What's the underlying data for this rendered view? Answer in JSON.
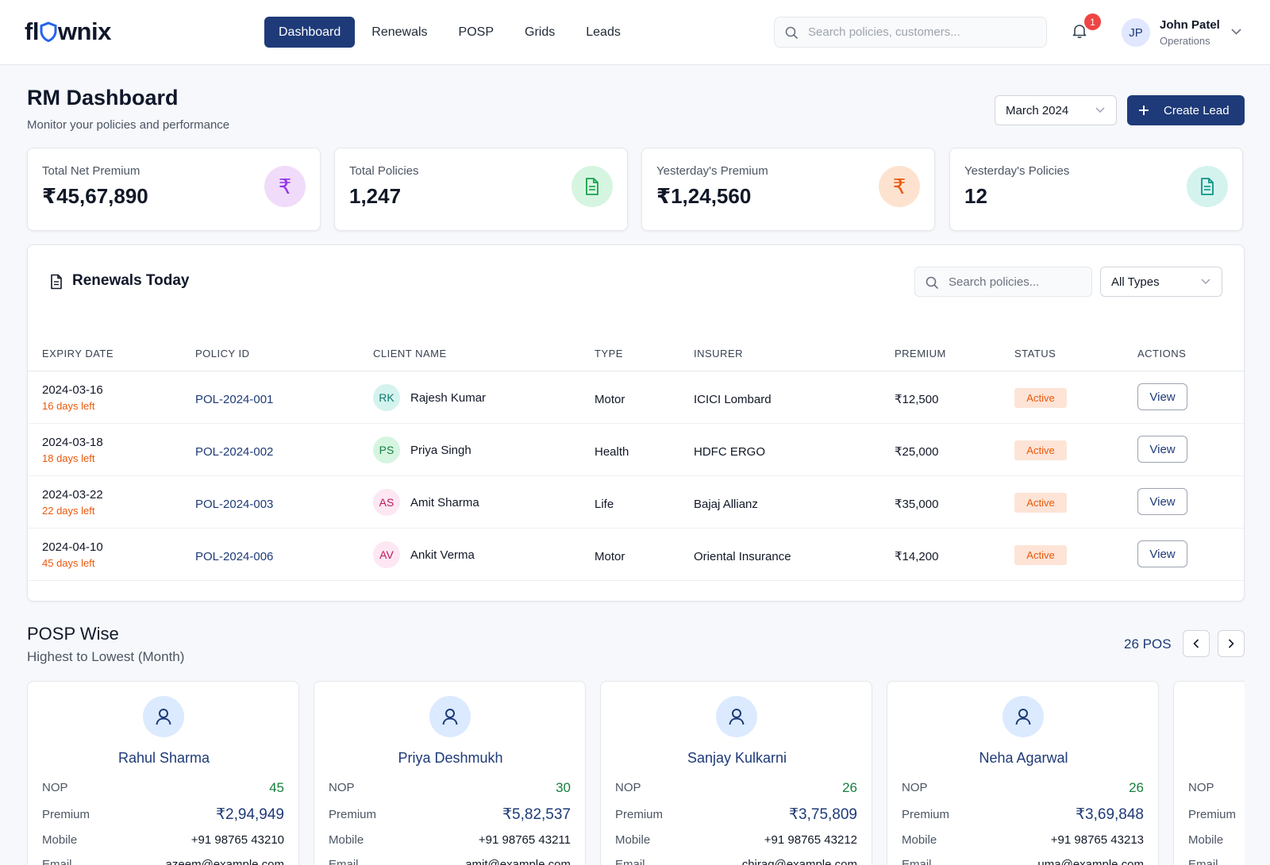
{
  "brand": {
    "logo_prefix": "fl",
    "logo_suffix": "wnix"
  },
  "nav": {
    "tabs": [
      {
        "label": "Dashboard"
      },
      {
        "label": "Renewals"
      },
      {
        "label": "POSP"
      },
      {
        "label": "Grids"
      },
      {
        "label": "Leads"
      }
    ]
  },
  "top_search": {
    "placeholder": "Search policies, customers..."
  },
  "notifications": {
    "count": "1"
  },
  "user": {
    "initials": "JP",
    "name": "John Patel",
    "role": "Operations"
  },
  "header": {
    "title": "RM Dashboard",
    "subtitle": "Monitor your policies and performance",
    "month": "March 2024",
    "create_label": "Create Lead"
  },
  "stats": [
    {
      "label": "Total Net Premium",
      "value": "₹45,67,890",
      "icon": "rupee-icon",
      "bg": "#f0dcfa",
      "fg": "#9333ea"
    },
    {
      "label": "Total Policies",
      "value": "1,247",
      "icon": "document-icon",
      "bg": "#d6f5e1",
      "fg": "#16a34a"
    },
    {
      "label": "Yesterday's Premium",
      "value": "₹1,24,560",
      "icon": "rupee-icon",
      "bg": "#fde3cf",
      "fg": "#ea580c"
    },
    {
      "label": "Yesterday's Policies",
      "value": "12",
      "icon": "document-icon",
      "bg": "#d4f3ee",
      "fg": "#0d9488"
    }
  ],
  "renewals": {
    "title": "Renewals Today",
    "search_placeholder": "Search policies...",
    "type_filter": "All Types",
    "columns": [
      "EXPIRY DATE",
      "POLICY ID",
      "CLIENT NAME",
      "TYPE",
      "INSURER",
      "PREMIUM",
      "STATUS",
      "ACTIONS"
    ],
    "rows": [
      {
        "expiry": "2024-03-16",
        "days_left": "16 days left",
        "policy_id": "POL-2024-001",
        "initials": "RK",
        "client": "Rajesh Kumar",
        "type": "Motor",
        "insurer": "ICICI Lombard",
        "premium": "₹12,500",
        "status": "Active",
        "action": "View",
        "avatar_bg": "#d4f3ee",
        "avatar_fg": "#0f766e"
      },
      {
        "expiry": "2024-03-18",
        "days_left": "18 days left",
        "policy_id": "POL-2024-002",
        "initials": "PS",
        "client": "Priya Singh",
        "type": "Health",
        "insurer": "HDFC ERGO",
        "premium": "₹25,000",
        "status": "Active",
        "action": "View",
        "avatar_bg": "#d6f5e1",
        "avatar_fg": "#15803d"
      },
      {
        "expiry": "2024-03-22",
        "days_left": "22 days left",
        "policy_id": "POL-2024-003",
        "initials": "AS",
        "client": "Amit Sharma",
        "type": "Life",
        "insurer": "Bajaj Allianz",
        "premium": "₹35,000",
        "status": "Active",
        "action": "View",
        "avatar_bg": "#fce7f3",
        "avatar_fg": "#be185d"
      },
      {
        "expiry": "2024-04-10",
        "days_left": "45 days left",
        "policy_id": "POL-2024-006",
        "initials": "AV",
        "client": "Ankit Verma",
        "type": "Motor",
        "insurer": "Oriental Insurance",
        "premium": "₹14,200",
        "status": "Active",
        "action": "View",
        "avatar_bg": "#fce7f3",
        "avatar_fg": "#be185d"
      }
    ]
  },
  "posp": {
    "title": "POSP Wise",
    "subtitle": "Highest to Lowest (Month)",
    "count": "26 POS",
    "labels": {
      "nop": "NOP",
      "premium": "Premium",
      "mobile": "Mobile",
      "email": "Email"
    },
    "cards": [
      {
        "name": "Rahul Sharma",
        "nop": "45",
        "premium": "₹2,94,949",
        "mobile": "+91 98765 43210",
        "email": "azeem@example.com"
      },
      {
        "name": "Priya Deshmukh",
        "nop": "30",
        "premium": "₹5,82,537",
        "mobile": "+91 98765 43211",
        "email": "amit@example.com"
      },
      {
        "name": "Sanjay Kulkarni",
        "nop": "26",
        "premium": "₹3,75,809",
        "mobile": "+91 98765 43212",
        "email": "chirag@example.com"
      },
      {
        "name": "Neha Agarwal",
        "nop": "26",
        "premium": "₹3,69,848",
        "mobile": "+91 98765 43213",
        "email": "uma@example.com"
      },
      {
        "name": "",
        "nop": "",
        "premium": "",
        "mobile": "",
        "email": ""
      }
    ]
  }
}
